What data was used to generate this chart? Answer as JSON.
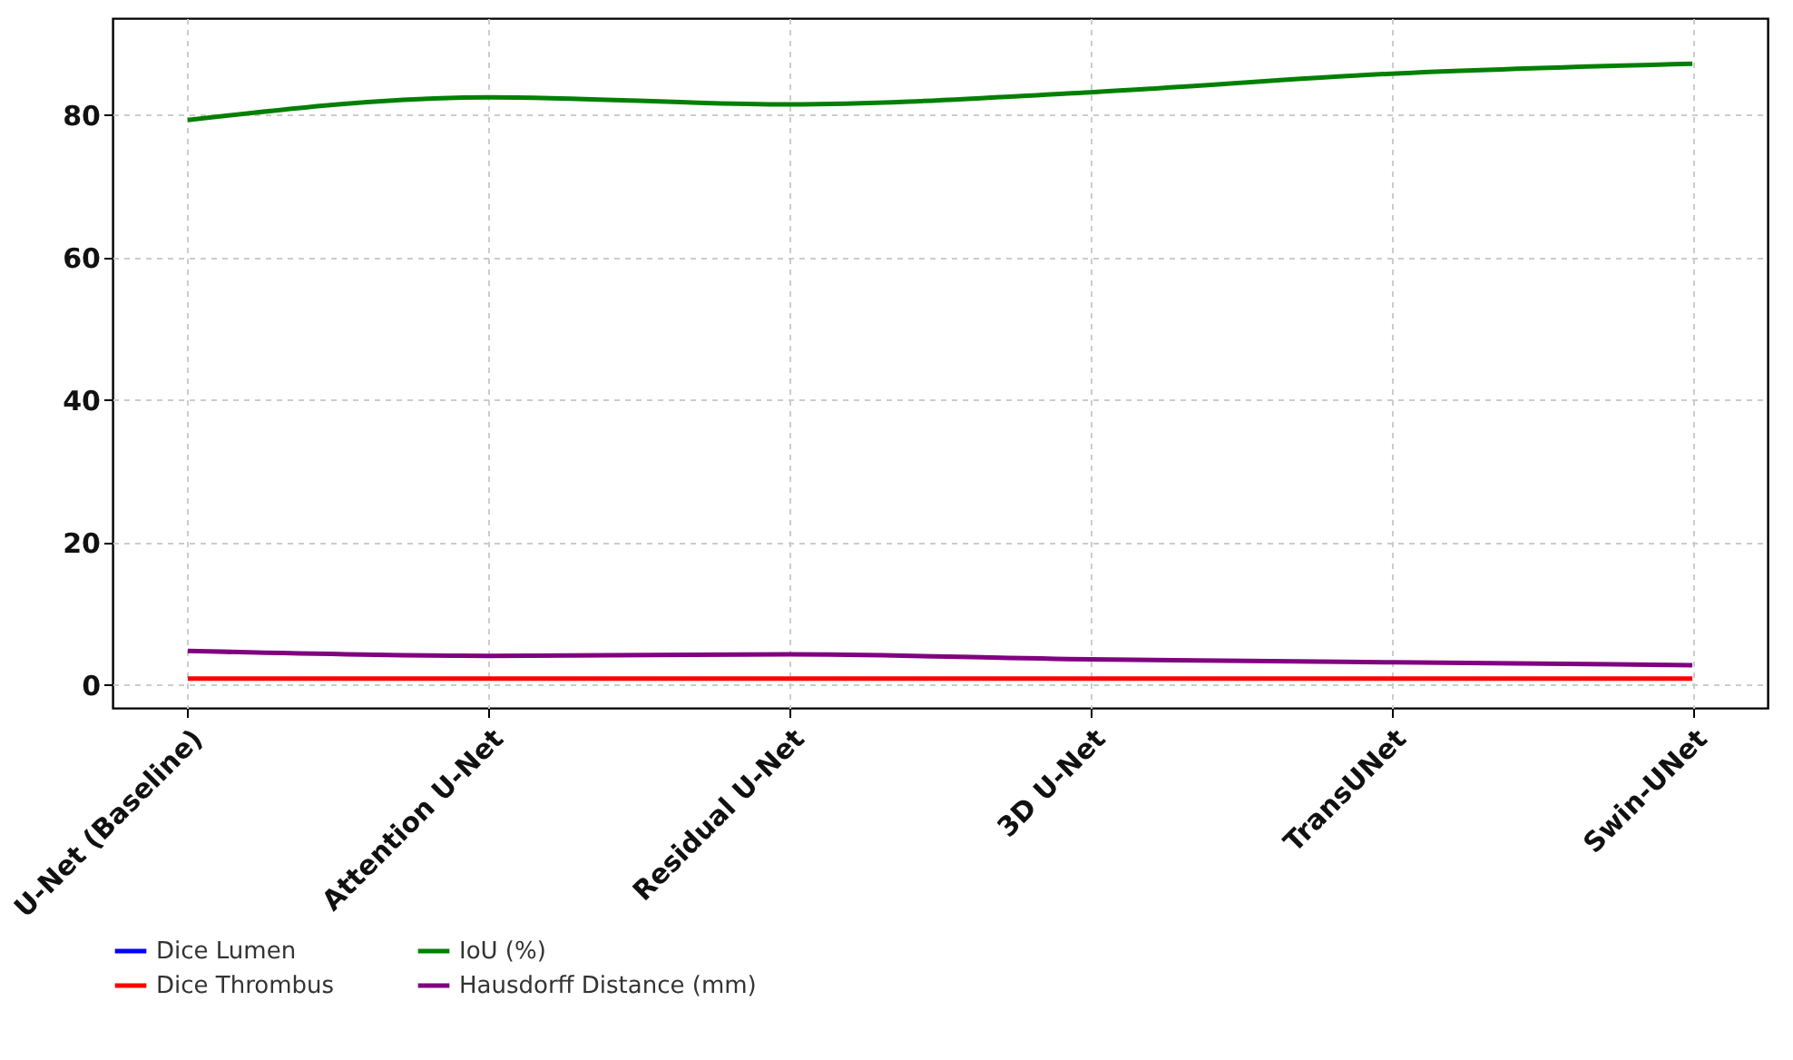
{
  "chart_data": {
    "type": "line",
    "categories": [
      "U-Net (Baseline)",
      "Attention U-Net",
      "Residual U-Net",
      "3D U-Net",
      "TransUNet",
      "Swin-UNet"
    ],
    "series": [
      {
        "name": "Dice Lumen",
        "color": "#0000ff",
        "values": [
          null,
          null,
          null,
          null,
          null,
          null
        ]
      },
      {
        "name": "Dice Thrombus",
        "color": "#ff0000",
        "values": [
          0.9,
          0.9,
          0.9,
          0.9,
          0.9,
          0.9
        ]
      },
      {
        "name": "IoU (%)",
        "color": "#008000",
        "values": [
          79.3,
          82.5,
          81.5,
          83.2,
          85.8,
          87.2
        ]
      },
      {
        "name": "Hausdorff Distance (mm)",
        "color": "#800080",
        "values": [
          4.8,
          4.1,
          4.3,
          3.6,
          3.2,
          2.8
        ]
      }
    ],
    "ylim": [
      -3.2,
      93.6
    ],
    "yticks": [
      0,
      20,
      40,
      60,
      80
    ],
    "grid": true,
    "legend": "bottom",
    "marker": "none",
    "line_style": "solid"
  }
}
